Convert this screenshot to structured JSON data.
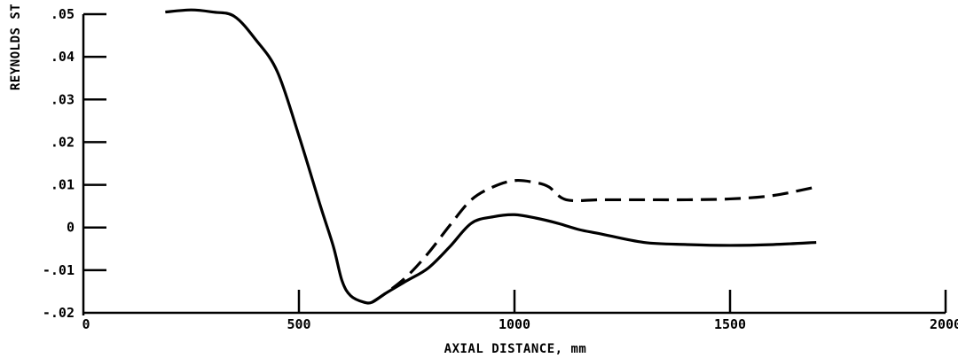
{
  "chart_data": {
    "type": "line",
    "title": "",
    "xlabel": "AXIAL DISTANCE, mm",
    "ylabel": "REYNOLDS ST",
    "xlim": [
      0,
      2000
    ],
    "ylim": [
      -0.02,
      0.05
    ],
    "x_ticks": [
      {
        "value": 0,
        "label": "0"
      },
      {
        "value": 500,
        "label": "500"
      },
      {
        "value": 1000,
        "label": "1000"
      },
      {
        "value": 1500,
        "label": "1500"
      },
      {
        "value": 2000,
        "label": "2000"
      }
    ],
    "y_ticks": [
      {
        "value": -0.02,
        "label": "-.02"
      },
      {
        "value": -0.01,
        "label": "-.01"
      },
      {
        "value": 0,
        "label": "0"
      },
      {
        "value": 0.01,
        "label": ".01"
      },
      {
        "value": 0.02,
        "label": ".02"
      },
      {
        "value": 0.03,
        "label": ".03"
      },
      {
        "value": 0.04,
        "label": ".04"
      },
      {
        "value": 0.05,
        "label": ".05"
      }
    ],
    "grid": false,
    "series": [
      {
        "style": "solid",
        "color": "#000000",
        "x": [
          190,
          250,
          300,
          350,
          400,
          450,
          500,
          550,
          580,
          600,
          620,
          650,
          670,
          700,
          750,
          800,
          850,
          900,
          950,
          1000,
          1050,
          1100,
          1150,
          1200,
          1300,
          1400,
          1500,
          1600,
          1700
        ],
        "y": [
          0.0505,
          0.051,
          0.0505,
          0.0495,
          0.044,
          0.0365,
          0.0215,
          0.005,
          -0.0045,
          -0.0125,
          -0.016,
          -0.0175,
          -0.0175,
          -0.0155,
          -0.0125,
          -0.0095,
          -0.0045,
          0.001,
          0.0025,
          0.003,
          0.0022,
          0.001,
          -0.0005,
          -0.0015,
          -0.0035,
          -0.004,
          -0.0042,
          -0.004,
          -0.0035
        ]
      },
      {
        "style": "dashed",
        "color": "#000000",
        "x": [
          670,
          700,
          750,
          800,
          850,
          900,
          950,
          1000,
          1050,
          1080,
          1120,
          1200,
          1300,
          1400,
          1500,
          1600,
          1700
        ],
        "y": [
          -0.0175,
          -0.0155,
          -0.0115,
          -0.006,
          0.0005,
          0.0065,
          0.0095,
          0.011,
          0.0105,
          0.0095,
          0.0065,
          0.0065,
          0.0065,
          0.0065,
          0.0067,
          0.0075,
          0.0095
        ]
      }
    ]
  }
}
